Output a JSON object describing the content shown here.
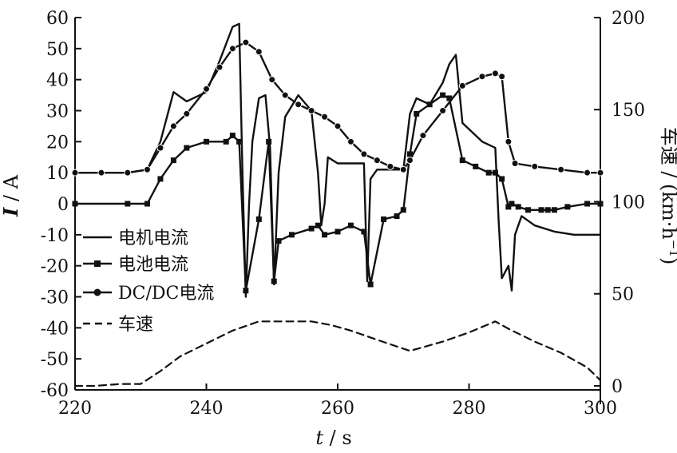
{
  "chart_data": {
    "type": "line",
    "xlabel": {
      "var": "t",
      "unit": "s"
    },
    "ylabel_left": {
      "var": "I",
      "unit": "A"
    },
    "ylabel_right": {
      "var": "车速",
      "unit": "km·h",
      "exp": "−1"
    },
    "xlim": [
      220,
      300
    ],
    "ylim_left": [
      -60,
      60
    ],
    "ylim_right": [
      -10,
      200
    ],
    "x_ticks": [
      220,
      240,
      260,
      280,
      300
    ],
    "y_ticks_left": [
      60,
      50,
      40,
      30,
      20,
      10,
      0,
      -10,
      -20,
      -30,
      -40,
      -50,
      -60
    ],
    "y_ticks_right": [
      200,
      150,
      100,
      50,
      0
    ],
    "legend_position": "lower-left",
    "series": [
      {
        "name": "电机电流",
        "axis": "left",
        "style": "solid",
        "x": [
          220,
          228,
          231,
          233,
          235,
          237,
          240,
          242,
          244,
          245,
          245.5,
          246,
          246.5,
          247,
          248,
          249,
          249.7,
          250.3,
          251,
          252,
          254,
          256,
          257,
          257.5,
          258,
          258.5,
          260,
          264,
          264.5,
          265,
          266,
          268,
          270,
          271,
          272,
          274,
          276,
          277,
          278,
          279,
          282,
          284,
          284.5,
          285,
          286,
          286.5,
          287,
          288,
          290,
          293,
          296,
          300
        ],
        "y": [
          10,
          10,
          11,
          20,
          36,
          33,
          36,
          46,
          57,
          58,
          10,
          -30,
          0,
          20,
          34,
          35,
          18,
          -26,
          10,
          28,
          35,
          30,
          10,
          -7,
          0,
          15,
          13,
          13,
          -25,
          8,
          11,
          11,
          11,
          29,
          34,
          32,
          39,
          45,
          48,
          26,
          20,
          18,
          -5,
          -24,
          -20,
          -28,
          -10,
          -4,
          -7,
          -9,
          -10,
          -10
        ]
      },
      {
        "name": "电池电流",
        "axis": "left",
        "style": "solid-square-markers",
        "x": [
          220,
          228,
          231,
          233,
          235,
          237,
          240,
          243,
          244,
          245,
          246,
          248,
          249.5,
          250.3,
          251,
          253,
          256,
          257,
          258,
          260,
          262,
          264,
          265,
          267,
          269,
          270,
          271,
          272,
          274,
          276,
          277,
          279,
          281,
          283,
          284,
          285,
          286,
          286.5,
          287.5,
          289,
          291,
          292,
          293,
          295,
          298,
          300
        ],
        "y": [
          0,
          0,
          0,
          8,
          14,
          18,
          20,
          20,
          22,
          20,
          -28,
          -5,
          20,
          -25,
          -12,
          -10,
          -8,
          -7,
          -10,
          -9,
          -7,
          -9,
          -26,
          -5,
          -4,
          -2,
          16,
          29,
          32,
          35,
          34,
          14,
          12,
          10,
          10,
          8,
          -1,
          0,
          -1,
          -2,
          -2,
          -2,
          -2,
          -1,
          0,
          0
        ]
      },
      {
        "name": "DC/DC电流",
        "axis": "left",
        "style": "solid-circle-markers",
        "x": [
          220,
          224,
          228,
          231,
          233,
          235,
          237,
          240,
          242,
          244,
          246,
          248,
          250,
          252,
          254,
          256,
          258,
          260,
          262,
          264,
          266,
          268,
          270,
          271,
          273,
          276,
          279,
          282,
          284,
          285,
          286,
          287,
          290,
          294,
          298,
          300
        ],
        "y": [
          10,
          10,
          10,
          11,
          18,
          25,
          29,
          37,
          44,
          50,
          52,
          49,
          40,
          35,
          32,
          30,
          28,
          25,
          20,
          16,
          14,
          12,
          11,
          14,
          22,
          30,
          38,
          41,
          42,
          41,
          20,
          13,
          12,
          11,
          10,
          10
        ]
      },
      {
        "name": "车速",
        "axis": "right",
        "style": "dashed",
        "x": [
          220,
          223,
          227,
          230,
          233,
          236,
          240,
          244,
          248,
          252,
          256,
          259,
          262,
          266,
          271,
          276,
          280,
          284,
          286,
          290,
          294,
          298,
          300
        ],
        "y": [
          0,
          0,
          1,
          1,
          8,
          16,
          23,
          30,
          35,
          35,
          35,
          33,
          30,
          25,
          19,
          24,
          29,
          35,
          31,
          24,
          18,
          10,
          3
        ]
      }
    ]
  }
}
